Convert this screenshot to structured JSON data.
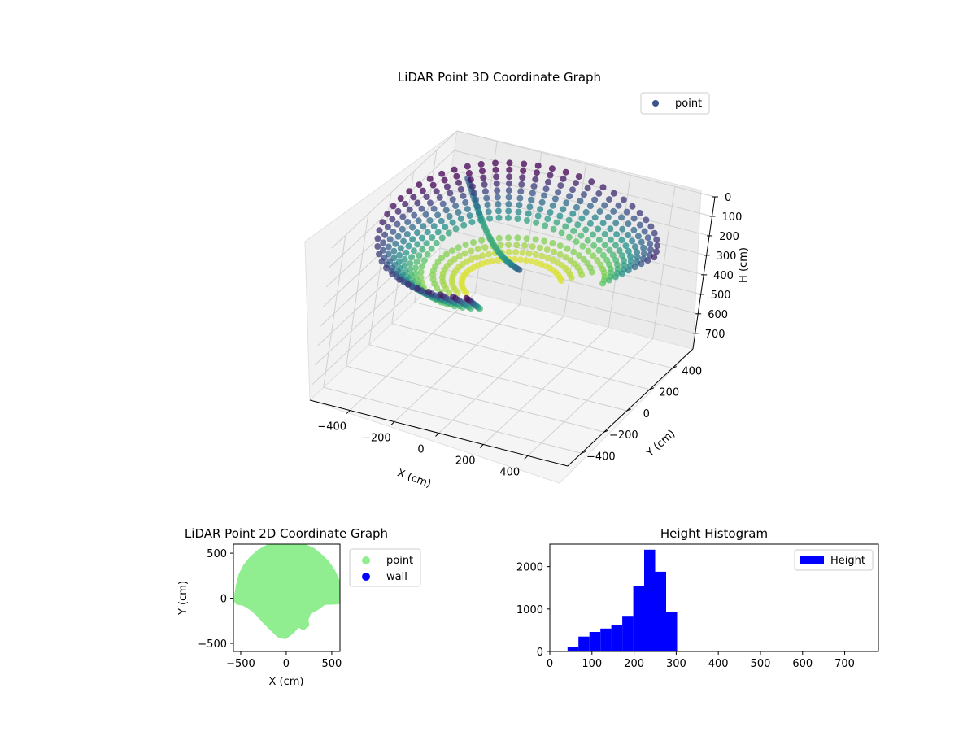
{
  "chart_data": [
    {
      "type": "scatter3d",
      "title": "LiDAR Point 3D Coordinate Graph",
      "xlabel": "X (cm)",
      "ylabel": "Y (cm)",
      "zlabel": "H (cm)",
      "xticks": [
        -400,
        -200,
        0,
        200,
        400
      ],
      "yticks": [
        -400,
        -200,
        0,
        200,
        400
      ],
      "zticks": [
        0,
        100,
        200,
        300,
        400,
        500,
        600,
        700
      ],
      "xlim": [
        -580,
        580
      ],
      "ylim": [
        -520,
        580
      ],
      "zlim": [
        0,
        780
      ],
      "z_inverted": true,
      "grid": true,
      "legend": {
        "position": "top-right",
        "entries": [
          {
            "label": "point",
            "color": "#3b528b"
          }
        ]
      },
      "colormap": "viridis",
      "series": [
        {
          "name": "point",
          "shape": "dome shell of points, radius about 560 cm, heights about 50-300 cm"
        }
      ]
    },
    {
      "type": "scatter",
      "title": "LiDAR Point 2D Coordinate Graph",
      "xlabel": "X (cm)",
      "ylabel": "Y (cm)",
      "xticks": [
        -500,
        0,
        500
      ],
      "yticks": [
        -500,
        0,
        500
      ],
      "xlim": [
        -580,
        590
      ],
      "ylim": [
        -590,
        600
      ],
      "legend": {
        "position": "outside-right",
        "entries": [
          {
            "label": "point",
            "color": "#90ee90"
          },
          {
            "label": "wall",
            "color": "#0000ff"
          }
        ]
      },
      "series": [
        {
          "name": "point",
          "color": "#90ee90",
          "outline": [
            [
              -560,
              -30
            ],
            [
              -555,
              40
            ],
            [
              -540,
              140
            ],
            [
              -510,
              260
            ],
            [
              -460,
              360
            ],
            [
              -390,
              450
            ],
            [
              -300,
              530
            ],
            [
              -200,
              585
            ],
            [
              -80,
              605
            ],
            [
              80,
              605
            ],
            [
              200,
              590
            ],
            [
              300,
              545
            ],
            [
              390,
              470
            ],
            [
              460,
              400
            ],
            [
              520,
              310
            ],
            [
              560,
              230
            ],
            [
              580,
              170
            ],
            [
              590,
              140
            ],
            [
              590,
              -50
            ],
            [
              560,
              -55
            ],
            [
              420,
              -60
            ],
            [
              340,
              -120
            ],
            [
              260,
              -160
            ],
            [
              230,
              -240
            ],
            [
              240,
              -300
            ],
            [
              190,
              -340
            ],
            [
              130,
              -310
            ],
            [
              70,
              -380
            ],
            [
              -10,
              -440
            ],
            [
              -90,
              -420
            ],
            [
              -160,
              -350
            ],
            [
              -250,
              -260
            ],
            [
              -320,
              -180
            ],
            [
              -390,
              -120
            ],
            [
              -470,
              -70
            ],
            [
              -540,
              -60
            ]
          ]
        }
      ]
    },
    {
      "type": "bar",
      "title": "Height Histogram",
      "xticks": [
        0,
        100,
        200,
        300,
        400,
        500,
        600,
        700
      ],
      "yticks": [
        0,
        1000,
        2000
      ],
      "xlim": [
        0,
        780
      ],
      "ylim": [
        0,
        2530
      ],
      "legend": {
        "position": "top-right",
        "entries": [
          {
            "label": "Height",
            "color": "#0000ff"
          }
        ]
      },
      "bin_width": 26,
      "series": [
        {
          "name": "Height",
          "color": "#0000ff",
          "bins": [
            {
              "x0": 42,
              "count": 100
            },
            {
              "x0": 68,
              "count": 350
            },
            {
              "x0": 94,
              "count": 460
            },
            {
              "x0": 120,
              "count": 540
            },
            {
              "x0": 146,
              "count": 620
            },
            {
              "x0": 172,
              "count": 840
            },
            {
              "x0": 198,
              "count": 1550
            },
            {
              "x0": 224,
              "count": 2400
            },
            {
              "x0": 250,
              "count": 1880
            },
            {
              "x0": 276,
              "count": 920
            }
          ]
        }
      ]
    }
  ]
}
